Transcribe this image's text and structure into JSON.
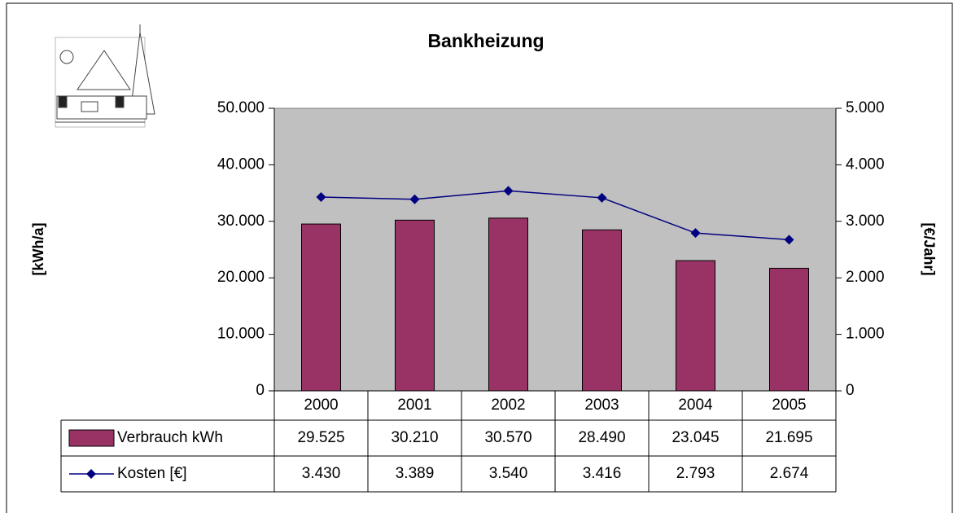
{
  "chart_data": {
    "type": "bar",
    "title": "Bankheizung",
    "y_label": "[kWh/a]",
    "y2_label": "[€/Jahr]",
    "categories": [
      "2000",
      "2001",
      "2002",
      "2003",
      "2004",
      "2005"
    ],
    "series": [
      {
        "name": "Verbrauch kWh",
        "type": "bar",
        "color": "#993366",
        "values": [
          29525,
          30210,
          30570,
          28490,
          23045,
          21695
        ],
        "value_labels": [
          "29.525",
          "30.210",
          "30.570",
          "28.490",
          "23.045",
          "21.695"
        ]
      },
      {
        "name": "Kosten [€]",
        "type": "line",
        "axis": "y2",
        "color": "#000080",
        "values": [
          3430,
          3389,
          3540,
          3416,
          2793,
          2674
        ],
        "value_labels": [
          "3.430",
          "3.389",
          "3.540",
          "3.416",
          "2.793",
          "2.674"
        ]
      }
    ],
    "ylim": [
      0,
      50000
    ],
    "yticks": [
      0,
      {
        "value": 10000,
        "label": "10.000"
      },
      {
        "value": 20000,
        "label": "20.000"
      },
      {
        "value": 30000,
        "label": "30.000"
      },
      {
        "value": 40000,
        "label": "40.000"
      },
      {
        "value": 50000,
        "label": "50.000"
      }
    ],
    "y2lim": [
      0,
      5000
    ],
    "y2ticks": [
      0,
      {
        "value": 1000,
        "label": "1.000"
      },
      {
        "value": 2000,
        "label": "2.000"
      },
      {
        "value": 3000,
        "label": "3.000"
      },
      {
        "value": 4000,
        "label": "4.000"
      },
      {
        "value": 5000,
        "label": "5.000"
      }
    ],
    "plot_background": "#c0c0c0"
  }
}
